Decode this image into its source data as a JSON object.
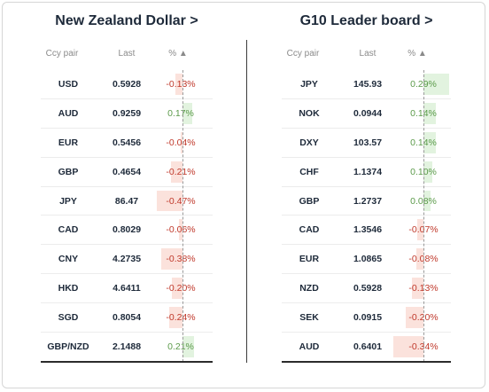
{
  "left": {
    "title": "New Zealand Dollar >",
    "columns": {
      "pair": "Ccy pair",
      "last": "Last",
      "pct": "% ▲"
    },
    "rows": [
      {
        "pair": "USD",
        "last": "0.5928",
        "pct": "-0.13%",
        "value": -0.13
      },
      {
        "pair": "AUD",
        "last": "0.9259",
        "pct": "0.17%",
        "value": 0.17
      },
      {
        "pair": "EUR",
        "last": "0.5456",
        "pct": "-0.04%",
        "value": -0.04
      },
      {
        "pair": "GBP",
        "last": "0.4654",
        "pct": "-0.21%",
        "value": -0.21
      },
      {
        "pair": "JPY",
        "last": "86.47",
        "pct": "-0.47%",
        "value": -0.47
      },
      {
        "pair": "CAD",
        "last": "0.8029",
        "pct": "-0.06%",
        "value": -0.06
      },
      {
        "pair": "CNY",
        "last": "4.2735",
        "pct": "-0.38%",
        "value": -0.38
      },
      {
        "pair": "HKD",
        "last": "4.6411",
        "pct": "-0.20%",
        "value": -0.2
      },
      {
        "pair": "SGD",
        "last": "0.8054",
        "pct": "-0.24%",
        "value": -0.24
      },
      {
        "pair": "GBP/NZD",
        "last": "2.1488",
        "pct": "0.21%",
        "value": 0.21
      }
    ]
  },
  "right": {
    "title": "G10 Leader board >",
    "columns": {
      "pair": "Ccy pair",
      "last": "Last",
      "pct": "% ▲"
    },
    "rows": [
      {
        "pair": "JPY",
        "last": "145.93",
        "pct": "0.29%",
        "value": 0.29
      },
      {
        "pair": "NOK",
        "last": "0.0944",
        "pct": "0.14%",
        "value": 0.14
      },
      {
        "pair": "DXY",
        "last": "103.57",
        "pct": "0.14%",
        "value": 0.14
      },
      {
        "pair": "CHF",
        "last": "1.1374",
        "pct": "0.10%",
        "value": 0.1
      },
      {
        "pair": "GBP",
        "last": "1.2737",
        "pct": "0.08%",
        "value": 0.08
      },
      {
        "pair": "CAD",
        "last": "1.3546",
        "pct": "-0.07%",
        "value": -0.07
      },
      {
        "pair": "EUR",
        "last": "1.0865",
        "pct": "-0.08%",
        "value": -0.08
      },
      {
        "pair": "NZD",
        "last": "0.5928",
        "pct": "-0.13%",
        "value": -0.13
      },
      {
        "pair": "SEK",
        "last": "0.0915",
        "pct": "-0.20%",
        "value": -0.2
      },
      {
        "pair": "AUD",
        "last": "0.6401",
        "pct": "-0.34%",
        "value": -0.34
      }
    ]
  },
  "colors": {
    "positive": "#5b9a4a",
    "negative": "#c0392b",
    "positive_bar": "#e2f3df",
    "negative_bar": "#fbe2dc"
  }
}
